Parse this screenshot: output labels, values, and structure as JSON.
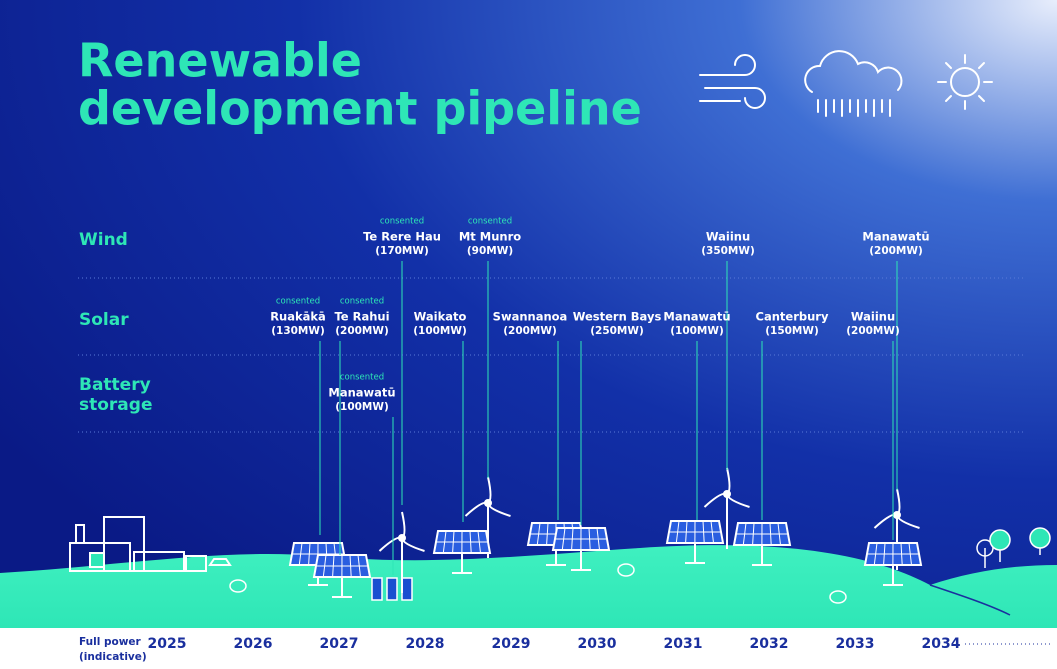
{
  "title": {
    "line1": "Renewable",
    "line2": "development pipeline"
  },
  "rows": [
    {
      "label": "Wind",
      "projects": [
        {
          "status": "consented",
          "name": "Te Rere Hau",
          "capacity": "(170MW)"
        },
        {
          "status": "consented",
          "name": "Mt Munro",
          "capacity": "(90MW)"
        },
        {
          "name": "Waiinu",
          "capacity": "(350MW)"
        },
        {
          "name": "Manawatū",
          "capacity": "(200MW)"
        }
      ]
    },
    {
      "label": "Solar",
      "projects": [
        {
          "status": "consented",
          "name": "Ruakākā",
          "capacity": "(130MW)"
        },
        {
          "status": "consented",
          "name": "Te Rahui",
          "capacity": "(200MW)"
        },
        {
          "name": "Waikato",
          "capacity": "(100MW)"
        },
        {
          "name": "Swannanoa",
          "capacity": "(200MW)"
        },
        {
          "name": "Western Bays",
          "capacity": "(250MW)"
        },
        {
          "name": "Manawatū",
          "capacity": "(100MW)"
        },
        {
          "name": "Canterbury",
          "capacity": "(150MW)"
        },
        {
          "name": "Waiinu",
          "capacity": "(200MW)"
        }
      ]
    },
    {
      "label": "Battery storage",
      "projects": [
        {
          "status": "consented",
          "name": "Manawatū",
          "capacity": "(100MW)"
        }
      ]
    }
  ],
  "footer": {
    "line1": "Full power",
    "line2": "(indicative)"
  },
  "years": [
    "2025",
    "2026",
    "2027",
    "2028",
    "2029",
    "2030",
    "2031",
    "2032",
    "2033",
    "2034"
  ]
}
